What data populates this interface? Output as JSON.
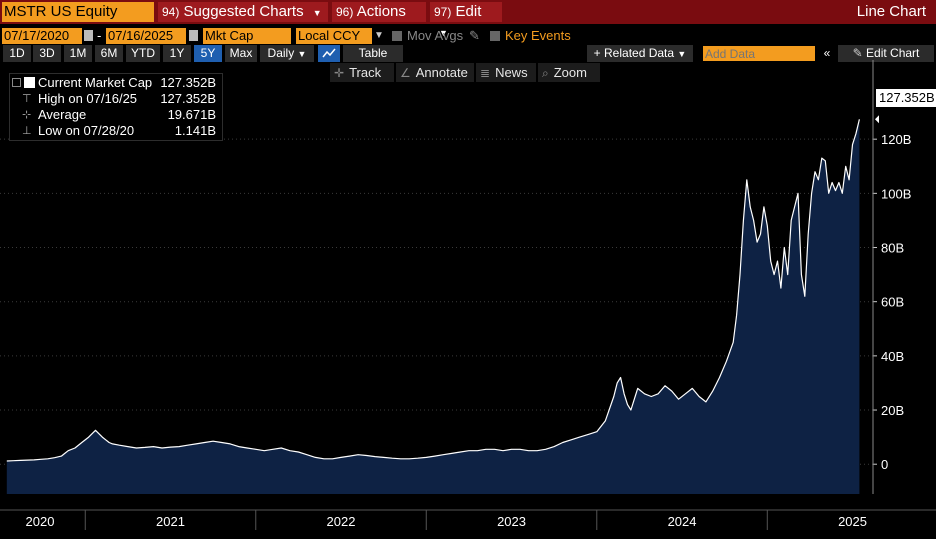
{
  "titlebar": {
    "ticker": "MSTR US Equity",
    "menus": [
      {
        "num": "94)",
        "label": "Suggested Charts"
      },
      {
        "num": "96)",
        "label": "Actions"
      },
      {
        "num": "97)",
        "label": "Edit"
      }
    ],
    "chart_type": "Line Chart"
  },
  "controls": {
    "start_date": "07/17/2020",
    "date_sep": "-",
    "end_date": "07/16/2025",
    "field": "Mkt Cap",
    "currency": "Local CCY",
    "mov_avgs": "Mov Avgs",
    "key_events": "Key Events",
    "periods": [
      "1D",
      "3D",
      "1M",
      "6M",
      "YTD",
      "1Y",
      "5Y",
      "Max"
    ],
    "active_period": "5Y",
    "frequency": "Daily",
    "table_label": "Table",
    "related_data": "+ Related Data",
    "add_data_placeholder": "Add Data",
    "edit_chart": "Edit Chart"
  },
  "tools": [
    {
      "icon": "crosshair-icon",
      "glyph": "✛",
      "label": "Track"
    },
    {
      "icon": "pencil-icon",
      "glyph": "∠",
      "label": "Annotate"
    },
    {
      "icon": "news-icon",
      "glyph": "≣",
      "label": "News"
    },
    {
      "icon": "magnifier-icon",
      "glyph": "⌕",
      "label": "Zoom"
    }
  ],
  "legend": [
    {
      "label": "Current Market Cap",
      "value": "127.352B"
    },
    {
      "label": "High on 07/16/25",
      "value": "127.352B"
    },
    {
      "label": "Average",
      "value": "19.671B"
    },
    {
      "label": "Low on 07/28/20",
      "value": "1.141B"
    }
  ],
  "colors": {
    "titlebar": "#7a0c10",
    "accent": "#f39c1f",
    "area_fill": "#0e2244",
    "line": "#ffffff",
    "active": "#1f5fb0"
  },
  "chart_data": {
    "type": "area",
    "series": [
      {
        "name": "Current Market Cap",
        "x": [
          2020.54,
          2020.58,
          2020.62,
          2020.66,
          2020.7,
          2020.74,
          2020.78,
          2020.82,
          2020.86,
          2020.88,
          2020.9,
          2020.94,
          2020.98,
          2021.02,
          2021.06,
          2021.1,
          2021.12,
          2021.14,
          2021.16,
          2021.2,
          2021.25,
          2021.3,
          2021.35,
          2021.4,
          2021.45,
          2021.5,
          2021.55,
          2021.6,
          2021.65,
          2021.7,
          2021.75,
          2021.8,
          2021.85,
          2021.9,
          2021.95,
          2022.0,
          2022.05,
          2022.1,
          2022.15,
          2022.2,
          2022.25,
          2022.3,
          2022.35,
          2022.4,
          2022.45,
          2022.5,
          2022.55,
          2022.6,
          2022.65,
          2022.7,
          2022.75,
          2022.8,
          2022.85,
          2022.9,
          2022.95,
          2023.0,
          2023.05,
          2023.1,
          2023.15,
          2023.2,
          2023.25,
          2023.3,
          2023.35,
          2023.4,
          2023.45,
          2023.5,
          2023.55,
          2023.6,
          2023.65,
          2023.7,
          2023.75,
          2023.8,
          2023.85,
          2023.9,
          2023.95,
          2024.0,
          2024.05,
          2024.1,
          2024.12,
          2024.14,
          2024.16,
          2024.18,
          2024.2,
          2024.22,
          2024.24,
          2024.28,
          2024.32,
          2024.36,
          2024.4,
          2024.44,
          2024.48,
          2024.52,
          2024.56,
          2024.6,
          2024.64,
          2024.68,
          2024.72,
          2024.76,
          2024.8,
          2024.82,
          2024.84,
          2024.86,
          2024.88,
          2024.9,
          2024.92,
          2024.94,
          2024.96,
          2024.98,
          2025.0,
          2025.02,
          2025.04,
          2025.06,
          2025.08,
          2025.1,
          2025.12,
          2025.14,
          2025.16,
          2025.18,
          2025.2,
          2025.22,
          2025.24,
          2025.26,
          2025.28,
          2025.3,
          2025.32,
          2025.34,
          2025.36,
          2025.38,
          2025.4,
          2025.42,
          2025.44,
          2025.46,
          2025.48,
          2025.5,
          2025.52,
          2025.54
        ],
        "y": [
          1.2,
          1.3,
          1.4,
          1.5,
          1.6,
          1.8,
          2.0,
          2.4,
          3.0,
          4.0,
          5.0,
          6.0,
          8.0,
          10.0,
          12.5,
          10.0,
          9.0,
          8.0,
          7.5,
          7.0,
          6.5,
          6.0,
          6.2,
          6.5,
          6.0,
          6.3,
          6.5,
          7.0,
          7.5,
          8.0,
          8.5,
          8.0,
          7.5,
          6.5,
          6.0,
          5.5,
          5.0,
          5.5,
          6.0,
          5.0,
          4.5,
          3.5,
          2.5,
          2.0,
          2.0,
          2.5,
          3.0,
          3.5,
          3.2,
          2.8,
          2.5,
          2.2,
          2.0,
          2.0,
          2.2,
          2.5,
          3.0,
          3.5,
          4.0,
          4.5,
          5.0,
          5.0,
          5.5,
          5.5,
          5.0,
          5.5,
          5.5,
          5.0,
          5.0,
          5.5,
          6.5,
          8.0,
          9.0,
          10.0,
          11.0,
          12.0,
          16.0,
          25.0,
          30.0,
          32.0,
          26.0,
          22.0,
          20.0,
          24.0,
          28.0,
          26.0,
          25.0,
          26.0,
          29.0,
          27.0,
          24.0,
          26.0,
          28.0,
          25.0,
          23.0,
          27.0,
          32.0,
          38.0,
          45.0,
          55.0,
          70.0,
          90.0,
          105.0,
          95.0,
          90.0,
          82.0,
          85.0,
          95.0,
          88.0,
          75.0,
          70.0,
          75.0,
          65.0,
          80.0,
          70.0,
          90.0,
          95.0,
          100.0,
          70.0,
          62.0,
          85.0,
          100.0,
          108.0,
          105.0,
          113.0,
          112.0,
          100.0,
          104.0,
          101.0,
          104.0,
          100.0,
          110.0,
          105.0,
          118.0,
          122.0,
          127.352
        ]
      }
    ],
    "x_labels": [
      {
        "label": "2020",
        "x": 2020.54
      },
      {
        "label": "2021",
        "x": 2021.0
      },
      {
        "label": "2022",
        "x": 2022.0
      },
      {
        "label": "2023",
        "x": 2023.0
      },
      {
        "label": "2024",
        "x": 2024.0
      },
      {
        "label": "2025",
        "x": 2025.0
      }
    ],
    "y_ticks": [
      0,
      20,
      40,
      60,
      80,
      100,
      120
    ],
    "y_tick_labels": [
      "0",
      "20B",
      "40B",
      "60B",
      "80B",
      "100B",
      "120B"
    ],
    "ylim": [
      -11,
      140
    ],
    "last_value_label": "127.352B"
  }
}
